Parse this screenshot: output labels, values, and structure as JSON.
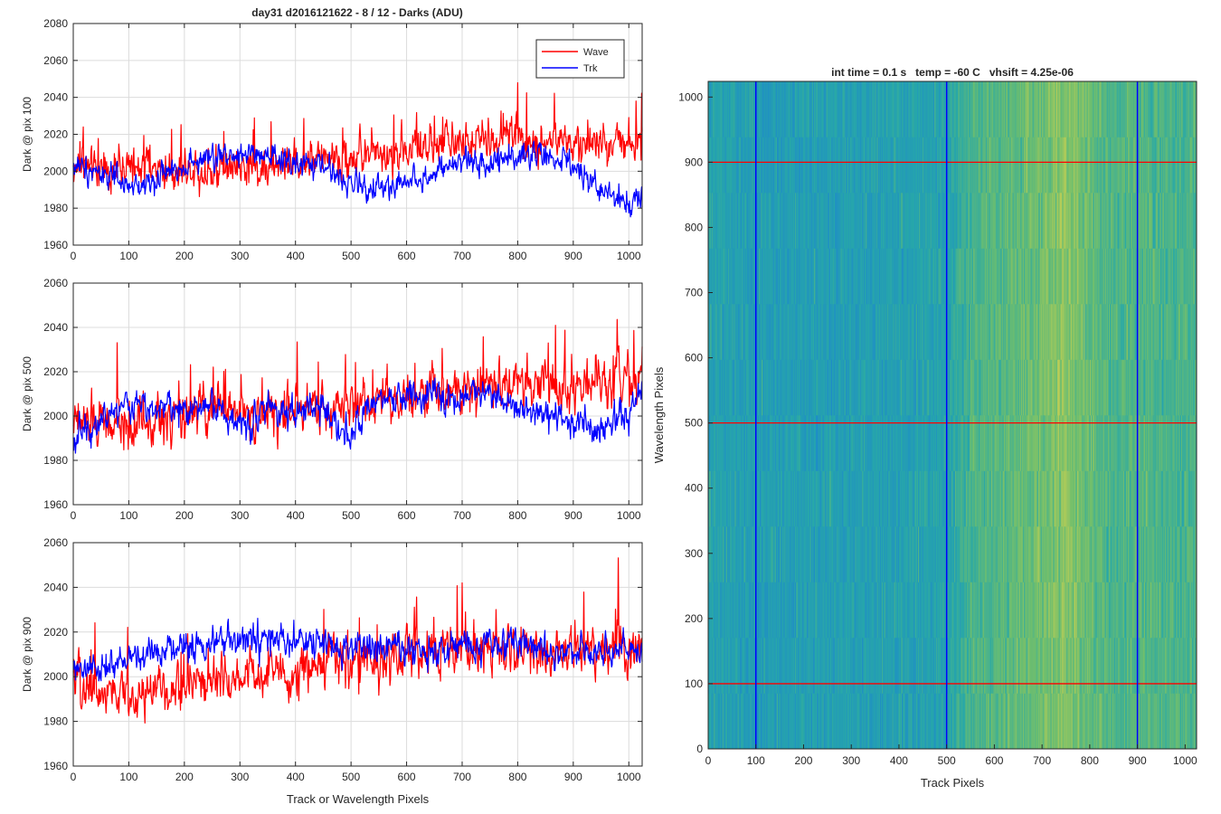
{
  "figure_title": "day31 d2016121622 - 8 / 12 - Darks (ADU)",
  "colors": {
    "wave": "#ff0000",
    "track": "#0000ff",
    "image_base": "#2aa5a5",
    "grid": "#dcdcdc"
  },
  "chart_data": [
    {
      "type": "line",
      "title": "day31 d2016121622 - 8 / 12 - Darks (ADU)",
      "xlabel": "",
      "ylabel": "Dark @ pix 100",
      "xlim": [
        0,
        1024
      ],
      "ylim": [
        1960,
        2080
      ],
      "xticks": [
        0,
        100,
        200,
        300,
        400,
        500,
        600,
        700,
        800,
        900,
        1000
      ],
      "yticks": [
        1960,
        1980,
        2000,
        2020,
        2040,
        2060,
        2080
      ],
      "grid": true,
      "legend": {
        "position": "top-right",
        "entries": [
          "Wave",
          "Trk"
        ]
      },
      "series": [
        {
          "name": "Wave",
          "color": "#ff0000",
          "x": [
            0,
            50,
            100,
            150,
            200,
            250,
            300,
            350,
            400,
            450,
            500,
            550,
            600,
            650,
            700,
            750,
            800,
            850,
            900,
            950,
            1000,
            1024
          ],
          "values": [
            2003,
            2002,
            2001,
            2002,
            2002,
            2001,
            2002,
            2003,
            2004,
            2006,
            2008,
            2010,
            2011,
            2014,
            2016,
            2017,
            2018,
            2016,
            2015,
            2016,
            2017,
            2016
          ],
          "amplitude": 9
        },
        {
          "name": "Trk",
          "color": "#0000ff",
          "x": [
            0,
            50,
            100,
            150,
            200,
            250,
            300,
            350,
            400,
            450,
            500,
            550,
            600,
            650,
            700,
            750,
            800,
            850,
            900,
            950,
            1000,
            1024
          ],
          "values": [
            2003,
            2000,
            1990,
            1996,
            2004,
            2007,
            2010,
            2006,
            2004,
            2003,
            1993,
            1990,
            1995,
            1998,
            2005,
            2005,
            2010,
            2008,
            2002,
            1990,
            1983,
            1988
          ],
          "amplitude": 6
        }
      ]
    },
    {
      "type": "line",
      "title": "",
      "xlabel": "",
      "ylabel": "Dark @ pix 500",
      "xlim": [
        0,
        1024
      ],
      "ylim": [
        1960,
        2060
      ],
      "xticks": [
        0,
        100,
        200,
        300,
        400,
        500,
        600,
        700,
        800,
        900,
        1000
      ],
      "yticks": [
        1960,
        1980,
        2000,
        2020,
        2040,
        2060
      ],
      "grid": true,
      "series": [
        {
          "name": "Wave",
          "color": "#ff0000",
          "x": [
            0,
            50,
            100,
            150,
            200,
            250,
            300,
            350,
            400,
            450,
            500,
            550,
            600,
            650,
            700,
            750,
            800,
            850,
            900,
            950,
            1000,
            1024
          ],
          "values": [
            1997,
            1997,
            1996,
            1998,
            2000,
            2002,
            2003,
            2001,
            2002,
            2004,
            2006,
            2008,
            2010,
            2012,
            2014,
            2014,
            2014,
            2013,
            2013,
            2014,
            2016,
            2017
          ],
          "amplitude": 9
        },
        {
          "name": "Trk",
          "color": "#0000ff",
          "x": [
            0,
            50,
            100,
            150,
            200,
            250,
            300,
            350,
            400,
            450,
            500,
            550,
            600,
            650,
            700,
            750,
            800,
            850,
            900,
            950,
            1000,
            1024
          ],
          "values": [
            1990,
            1999,
            2005,
            2005,
            2002,
            2006,
            1995,
            2004,
            2002,
            2003,
            1992,
            2006,
            2009,
            2009,
            2008,
            2012,
            2005,
            2000,
            1998,
            1994,
            2001,
            2015
          ],
          "amplitude": 6
        }
      ]
    },
    {
      "type": "line",
      "title": "",
      "xlabel": "Track or Wavelength Pixels",
      "ylabel": "Dark @ pix 900",
      "xlim": [
        0,
        1024
      ],
      "ylim": [
        1960,
        2060
      ],
      "xticks": [
        0,
        100,
        200,
        300,
        400,
        500,
        600,
        700,
        800,
        900,
        1000
      ],
      "yticks": [
        1960,
        1980,
        2000,
        2020,
        2040,
        2060
      ],
      "grid": true,
      "series": [
        {
          "name": "Wave",
          "color": "#ff0000",
          "x": [
            0,
            50,
            100,
            150,
            200,
            250,
            300,
            350,
            400,
            450,
            500,
            550,
            600,
            650,
            700,
            750,
            800,
            850,
            900,
            950,
            1000,
            1024
          ],
          "values": [
            1996,
            1993,
            1992,
            1993,
            1996,
            1998,
            2000,
            2001,
            2003,
            2004,
            2006,
            2008,
            2010,
            2012,
            2013,
            2013,
            2012,
            2012,
            2011,
            2012,
            2013,
            2012
          ],
          "amplitude": 9
        },
        {
          "name": "Trk",
          "color": "#0000ff",
          "x": [
            0,
            50,
            100,
            150,
            200,
            250,
            300,
            350,
            400,
            450,
            500,
            550,
            600,
            650,
            700,
            750,
            800,
            850,
            900,
            950,
            1000,
            1024
          ],
          "values": [
            2002,
            2003,
            2008,
            2012,
            2014,
            2015,
            2016,
            2016,
            2015,
            2014,
            2013,
            2013,
            2012,
            2012,
            2013,
            2014,
            2015,
            2013,
            2012,
            2011,
            2012,
            2011
          ],
          "amplitude": 6
        }
      ]
    },
    {
      "type": "heatmap",
      "title": "int time = 0.1 s   temp = -60 C   vhsift = 4.25e-06",
      "xlabel": "Track Pixels",
      "ylabel": "Wavelength Pixels",
      "xlim": [
        0,
        1024
      ],
      "ylim": [
        0,
        1024
      ],
      "xticks": [
        0,
        100,
        200,
        300,
        400,
        500,
        600,
        700,
        800,
        900,
        1000
      ],
      "yticks": [
        0,
        100,
        200,
        300,
        400,
        500,
        600,
        700,
        800,
        900,
        1000
      ],
      "vertical_markers": [
        100,
        500,
        900
      ],
      "horizontal_markers": [
        100,
        500,
        900
      ],
      "column_intensity_profile": {
        "x": [
          0,
          100,
          200,
          300,
          400,
          500,
          550,
          600,
          650,
          700,
          750,
          800,
          850,
          900,
          950,
          1024
        ],
        "level": [
          0.25,
          0.18,
          0.2,
          0.2,
          0.22,
          0.25,
          0.45,
          0.5,
          0.55,
          0.6,
          0.7,
          0.55,
          0.45,
          0.5,
          0.45,
          0.45
        ]
      }
    }
  ]
}
